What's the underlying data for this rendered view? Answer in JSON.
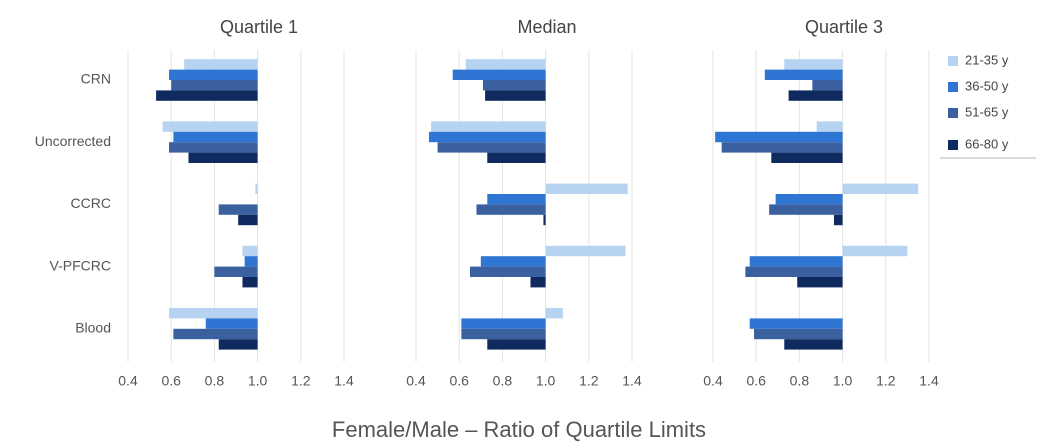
{
  "shared": {
    "categories": [
      "CRN",
      "Uncorrected",
      "CCRC",
      "V-PFCRC",
      "Blood"
    ],
    "series": [
      {
        "name": "21-35 y",
        "color": "#b7d3f2"
      },
      {
        "name": "36-50 y",
        "color": "#2f75d3"
      },
      {
        "name": "51-65 y",
        "color": "#3a609f"
      },
      {
        "name": "66-80 y",
        "color": "#0f2a5f"
      }
    ],
    "base": 1,
    "x_label": "Female/Male – Ratio of Quartile Limits",
    "legend": "right",
    "grid": true
  },
  "chart_data": [
    {
      "type": "bar",
      "orientation": "horizontal",
      "title": "Quartile 1",
      "xlim": [
        0.4,
        1.4
      ],
      "xticks": [
        0.4,
        0.6,
        0.8,
        {
          "value": 1,
          "label": "1.0"
        },
        1.2,
        1.4
      ],
      "series": [
        {
          "values": [
            0.66,
            0.56,
            0.99,
            0.93,
            0.59
          ]
        },
        {
          "values": [
            0.59,
            0.61,
            1,
            0.94,
            0.76
          ]
        },
        {
          "values": [
            0.6,
            0.59,
            0.82,
            0.8,
            0.61
          ]
        },
        {
          "values": [
            0.53,
            0.68,
            0.91,
            0.93,
            0.82
          ]
        }
      ]
    },
    {
      "type": "bar",
      "orientation": "horizontal",
      "title": "Median",
      "xlim": [
        0.4,
        1.4
      ],
      "xticks": [
        0.4,
        0.6,
        0.8,
        {
          "value": 1,
          "label": "1.0"
        },
        1.2,
        1.4
      ],
      "series": [
        {
          "values": [
            0.63,
            0.47,
            1.38,
            1.37,
            1.08
          ]
        },
        {
          "values": [
            0.57,
            0.46,
            0.73,
            0.7,
            0.61
          ]
        },
        {
          "values": [
            0.71,
            0.5,
            0.68,
            0.65,
            0.61
          ]
        },
        {
          "values": [
            0.72,
            0.73,
            0.99,
            0.93,
            0.73
          ]
        }
      ]
    },
    {
      "type": "bar",
      "orientation": "horizontal",
      "title": "Quartile 3",
      "xlim": [
        0.4,
        1.4
      ],
      "xticks": [
        0.4,
        0.6,
        0.8,
        {
          "value": 1,
          "label": "1.0"
        },
        1.2,
        1.4
      ],
      "series": [
        {
          "values": [
            0.73,
            0.88,
            1.35,
            1.3,
            1
          ]
        },
        {
          "values": [
            0.64,
            0.41,
            0.69,
            0.57,
            0.57
          ]
        },
        {
          "values": [
            0.86,
            0.44,
            0.66,
            0.55,
            0.59
          ]
        },
        {
          "values": [
            0.75,
            0.67,
            0.96,
            0.79,
            0.73
          ]
        }
      ]
    }
  ]
}
